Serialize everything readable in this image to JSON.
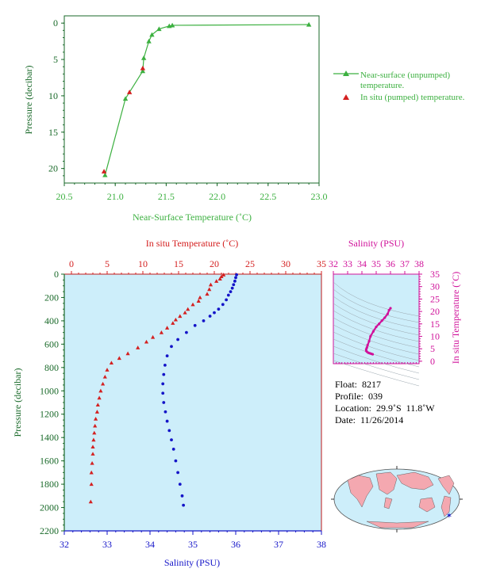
{
  "colors": {
    "green": "#3cb040",
    "red": "#d42020",
    "blue": "#1414c8",
    "magenta": "#d0119a",
    "axis_green": "#1a6a2a",
    "panel_bg": "#cdeefa"
  },
  "chart_data": [
    {
      "type": "line",
      "xlabel": "Near-Surface Temperature (˚C)",
      "ylabel": "Pressure (decibar)",
      "xlim": [
        20.5,
        23.0
      ],
      "ylim": [
        22,
        -1
      ],
      "xticks": [
        "20.5",
        "21.0",
        "21.5",
        "22.0",
        "22.5",
        "23.0"
      ],
      "yticks": [
        "0",
        "5",
        "10",
        "15",
        "20"
      ],
      "legend": {
        "position": "right",
        "entries": [
          "Near-surface (unpumped) temperature.",
          "In situ (pumped) temperature."
        ]
      },
      "series": [
        {
          "name": "Near-surface (unpumped) temperature.",
          "x": [
            22.9,
            21.56,
            21.53,
            21.43,
            21.36,
            21.33,
            21.28,
            21.27,
            21.1,
            20.9
          ],
          "y": [
            0.2,
            0.3,
            0.4,
            0.8,
            1.6,
            2.5,
            4.8,
            6.6,
            10.4,
            20.9
          ]
        },
        {
          "name": "In situ (pumped) temperature.",
          "x": [
            21.27,
            21.14,
            20.89
          ],
          "y": [
            6.2,
            9.5,
            20.4
          ]
        }
      ]
    },
    {
      "type": "line",
      "ylabel": "Pressure (decibar)",
      "top_xlabel": "In situ Temperature (˚C)",
      "bottom_xlabel": "Salinity (PSU)",
      "temperature_range": [
        -1,
        35
      ],
      "salinity_range": [
        32,
        38
      ],
      "ylim": [
        2200,
        0
      ],
      "temp_ticks": [
        "0",
        "5",
        "10",
        "15",
        "20",
        "25",
        "30",
        "35"
      ],
      "sal_ticks": [
        "32",
        "33",
        "34",
        "35",
        "36",
        "37",
        "38"
      ],
      "pressure_ticks": [
        "0",
        "200",
        "400",
        "600",
        "800",
        "1000",
        "1200",
        "1400",
        "1600",
        "1800",
        "2000",
        "2200"
      ],
      "series": [
        {
          "name": "In situ Temperature",
          "temperature": [
            21.3,
            21.0,
            20.8,
            20.3,
            19.5,
            19.3,
            19.0,
            18.0,
            17.8,
            17.0,
            16.3,
            15.9,
            15.2,
            14.6,
            14.2,
            13.4,
            12.6,
            11.4,
            10.5,
            9.3,
            7.9,
            6.7,
            5.6,
            5.0,
            4.7,
            4.4,
            4.1,
            3.9,
            3.7,
            3.6,
            3.4,
            3.3,
            3.2,
            3.1,
            3.0,
            3.0,
            2.9,
            2.8,
            2.8,
            2.7
          ],
          "pressure": [
            5,
            20,
            40,
            60,
            90,
            130,
            170,
            200,
            230,
            260,
            300,
            330,
            360,
            390,
            420,
            460,
            500,
            540,
            580,
            630,
            680,
            720,
            760,
            820,
            880,
            940,
            1000,
            1060,
            1120,
            1180,
            1240,
            1300,
            1360,
            1420,
            1480,
            1540,
            1620,
            1700,
            1800,
            1950
          ]
        },
        {
          "name": "Salinity",
          "salinity": [
            36.02,
            36.0,
            35.98,
            35.95,
            35.92,
            35.88,
            35.83,
            35.78,
            35.7,
            35.6,
            35.5,
            35.4,
            35.25,
            35.05,
            34.85,
            34.65,
            34.5,
            34.4,
            34.35,
            34.32,
            34.3,
            34.3,
            34.32,
            34.36,
            34.4,
            34.45,
            34.5,
            34.55,
            34.6,
            34.65,
            34.7,
            34.75,
            34.78
          ],
          "pressure": [
            5,
            30,
            60,
            90,
            120,
            150,
            180,
            220,
            260,
            300,
            330,
            360,
            400,
            440,
            500,
            560,
            620,
            700,
            780,
            860,
            940,
            1020,
            1100,
            1180,
            1260,
            1340,
            1420,
            1500,
            1600,
            1700,
            1800,
            1900,
            1980
          ]
        }
      ]
    },
    {
      "type": "scatter",
      "title": "Salinity (PSU)",
      "ylabel": "In situ Temperature (˚C)",
      "xlim": [
        32,
        38
      ],
      "ylim": [
        -1,
        35
      ],
      "xticks": [
        "32",
        "33",
        "34",
        "35",
        "36",
        "37",
        "38"
      ],
      "yticks": [
        "0",
        "5",
        "10",
        "15",
        "20",
        "25",
        "30",
        "35"
      ],
      "series": [
        {
          "name": "T-S",
          "salinity": [
            36.0,
            35.9,
            35.8,
            35.6,
            35.4,
            35.2,
            35.0,
            34.8,
            34.6,
            34.5,
            34.4,
            34.35,
            34.3,
            34.3,
            34.35,
            34.45,
            34.55,
            34.65,
            34.75
          ],
          "temperature": [
            21.3,
            20.5,
            19.0,
            17.5,
            16.3,
            15.0,
            13.8,
            12.0,
            10.0,
            8.0,
            6.5,
            5.5,
            4.8,
            4.2,
            3.8,
            3.4,
            3.2,
            3.0,
            2.8
          ]
        }
      ]
    }
  ],
  "float_info": {
    "float": "Float:  8217",
    "profile": "Profile:  039",
    "location": "Location:  29.9˚S  11.8˚W",
    "date": "Date:  11/26/2014"
  },
  "map": {
    "marker_lat": -29.9,
    "marker_lon": -11.8
  }
}
